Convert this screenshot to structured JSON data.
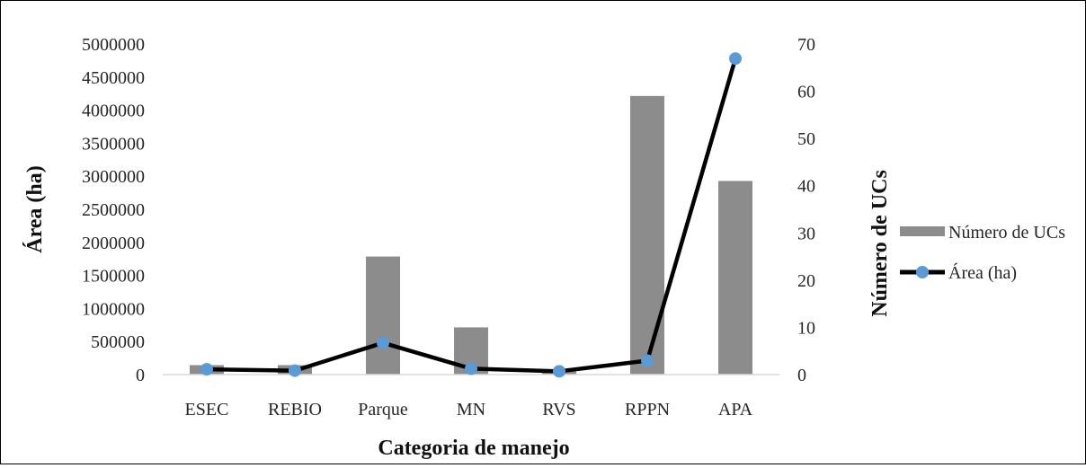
{
  "chart_data": {
    "type": "bar+line",
    "categories": [
      "ESEC",
      "REBIO",
      "Parque",
      "MN",
      "RVS",
      "RPPN",
      "APA"
    ],
    "xlabel": "Categoria de manejo",
    "ylabel_left": "Área (ha)",
    "ylabel_right": "Número de UCs",
    "ylim_left": [
      0,
      5000000
    ],
    "ylim_right": [
      0,
      70
    ],
    "yticks_left": [
      "0",
      "500000",
      "1000000",
      "1500000",
      "2000000",
      "2500000",
      "3000000",
      "3500000",
      "4000000",
      "4500000",
      "5000000"
    ],
    "yticks_right": [
      "0",
      "10",
      "20",
      "30",
      "40",
      "50",
      "60",
      "70"
    ],
    "legend_position": "right",
    "series": [
      {
        "name": "Número de UCs",
        "kind": "bar",
        "axis": "right",
        "color": "#8c8c8c",
        "values": [
          2,
          2,
          25,
          10,
          1,
          59,
          41
        ]
      },
      {
        "name": "Área (ha)",
        "kind": "line",
        "axis": "left",
        "color": "#000000",
        "marker_color": "#5b9bd5",
        "values": [
          80000,
          60000,
          480000,
          90000,
          50000,
          210000,
          4780000
        ]
      }
    ]
  }
}
